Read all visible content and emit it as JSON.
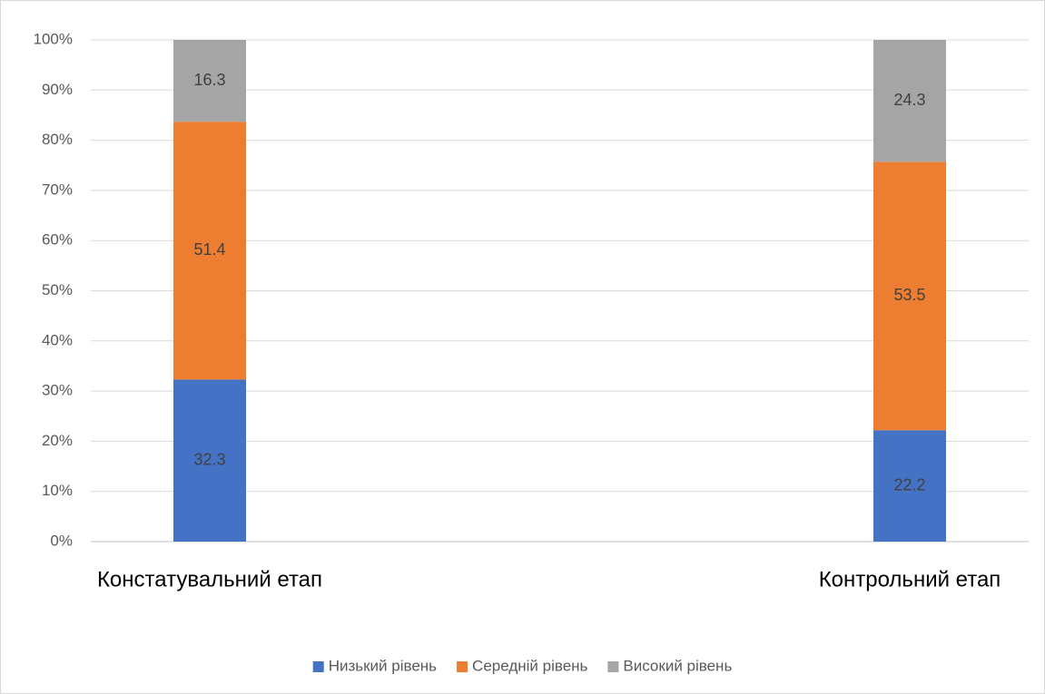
{
  "chart_data": {
    "type": "stacked_bar",
    "categories": [
      "Констатувальний етап",
      "Контрольний етап"
    ],
    "series": [
      {
        "name": "Низький рівень",
        "color": "#4472c4",
        "values": [
          32.3,
          22.2
        ]
      },
      {
        "name": "Середній рівень",
        "color": "#ed7d31",
        "values": [
          51.4,
          53.5
        ]
      },
      {
        "name": "Високий рівень",
        "color": "#a5a5a5",
        "values": [
          16.3,
          24.3
        ]
      }
    ],
    "ylim": [
      0,
      100
    ],
    "yticks": [
      {
        "value": 0,
        "label": "0%"
      },
      {
        "value": 10,
        "label": "10%"
      },
      {
        "value": 20,
        "label": "20%"
      },
      {
        "value": 30,
        "label": "30%"
      },
      {
        "value": 40,
        "label": "40%"
      },
      {
        "value": 50,
        "label": "50%"
      },
      {
        "value": 60,
        "label": "60%"
      },
      {
        "value": 70,
        "label": "70%"
      },
      {
        "value": 80,
        "label": "80%"
      },
      {
        "value": 90,
        "label": "90%"
      },
      {
        "value": 100,
        "label": "100%"
      }
    ],
    "grid": true,
    "legend": "bottom"
  }
}
